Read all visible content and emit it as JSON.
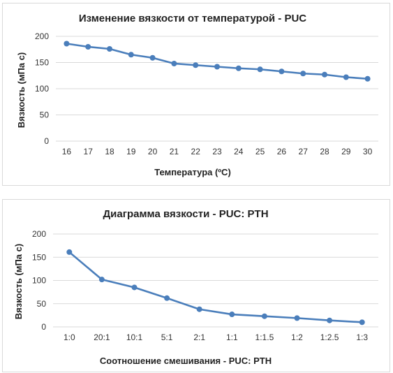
{
  "colors": {
    "series": "#4a7ebb",
    "grid": "#d9d9d9"
  },
  "chart_data": [
    {
      "type": "line",
      "title": "Изменение вязкости от температурой - PUC",
      "xlabel": "Температура (ºC)",
      "ylabel": "Вязкость (мПа с)",
      "ylim": [
        0,
        200
      ],
      "yticks": [
        "0",
        "50",
        "100",
        "150",
        "200"
      ],
      "categories": [
        "16",
        "17",
        "18",
        "19",
        "20",
        "21",
        "22",
        "23",
        "24",
        "25",
        "26",
        "27",
        "28",
        "29",
        "30"
      ],
      "values": [
        186,
        180,
        176,
        165,
        159,
        148,
        145,
        142,
        139,
        137,
        133,
        129,
        127,
        122,
        119
      ],
      "grid": true,
      "legend": "none"
    },
    {
      "type": "line",
      "title": "Диаграмма вязкости - PUC: PTH",
      "xlabel": "Соотношение смешивания - PUC: PTH",
      "ylabel": "Вязкость (мПа с)",
      "ylim": [
        0,
        200
      ],
      "yticks": [
        "0",
        "50",
        "100",
        "150",
        "200"
      ],
      "categories": [
        "1:0",
        "20:1",
        "10:1",
        "5:1",
        "2:1",
        "1:1",
        "1:1.5",
        "1:2",
        "1:2.5",
        "1:3"
      ],
      "values": [
        161,
        102,
        85,
        62,
        38,
        27,
        23,
        19,
        14,
        10
      ],
      "grid": true,
      "legend": "none"
    }
  ]
}
